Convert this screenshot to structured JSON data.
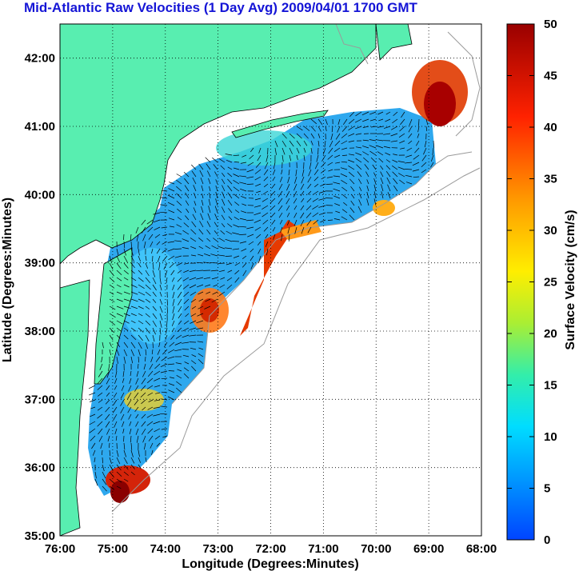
{
  "title": "Mid-Atlantic Raw Velocities (1 Day Avg) 2009/04/01 1700 GMT",
  "map": {
    "xlabel": "Longitude (Degrees:Minutes)",
    "ylabel": "Latitude (Degrees:Minutes)",
    "lon_ticks": [
      "76:00",
      "75:00",
      "74:00",
      "73:00",
      "72:00",
      "71:00",
      "70:00",
      "69:00",
      "68:00"
    ],
    "lat_ticks": [
      "35:00",
      "36:00",
      "37:00",
      "38:00",
      "39:00",
      "40:00",
      "41:00",
      "42:00"
    ],
    "lon_range": [
      -76,
      -68
    ],
    "lat_range": [
      35,
      42.5
    ],
    "colors": {
      "land": "#58eeb0",
      "background": "#ffffff",
      "bathymetry": "#9a9a9a",
      "vectors": "#000000"
    }
  },
  "colorbar": {
    "label": "Surface Velocity (cm/s)",
    "ticks": [
      "0",
      "5",
      "10",
      "15",
      "20",
      "25",
      "30",
      "35",
      "40",
      "45",
      "50"
    ],
    "range": [
      0,
      50
    ],
    "colormap": [
      "#0044ff",
      "#0099ff",
      "#00ddff",
      "#33eeaa",
      "#aaee33",
      "#ffee00",
      "#ff9900",
      "#ff2200",
      "#990000"
    ]
  }
}
